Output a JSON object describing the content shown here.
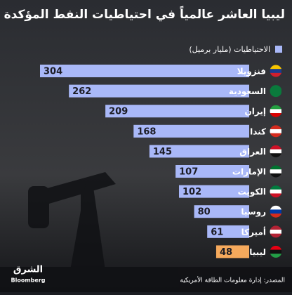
{
  "chart_data": {
    "type": "bar",
    "orientation": "horizontal",
    "title": "ليبيا العاشر عالمياً في احتياطيات النفط المؤكدة",
    "legend": "الاحتياطيات (مليار برميل)",
    "legend_color": "#a9b8f8",
    "categories": [
      "فنزويلا",
      "السعودية",
      "إيران",
      "كندا",
      "العراق",
      "الإمارات",
      "الكويت",
      "روسيا",
      "أميركا",
      "ليبيا"
    ],
    "values": [
      304,
      262,
      209,
      168,
      145,
      107,
      102,
      80,
      61,
      48
    ],
    "colors": [
      "#a9b8f8",
      "#a9b8f8",
      "#a9b8f8",
      "#a9b8f8",
      "#a9b8f8",
      "#a9b8f8",
      "#a9b8f8",
      "#a9b8f8",
      "#a9b8f8",
      "#f5a95c"
    ],
    "source": "المصدر: إدارة معلومات الطاقة الأمريكية",
    "logo": [
      "الشرق",
      "Bloomberg"
    ]
  }
}
